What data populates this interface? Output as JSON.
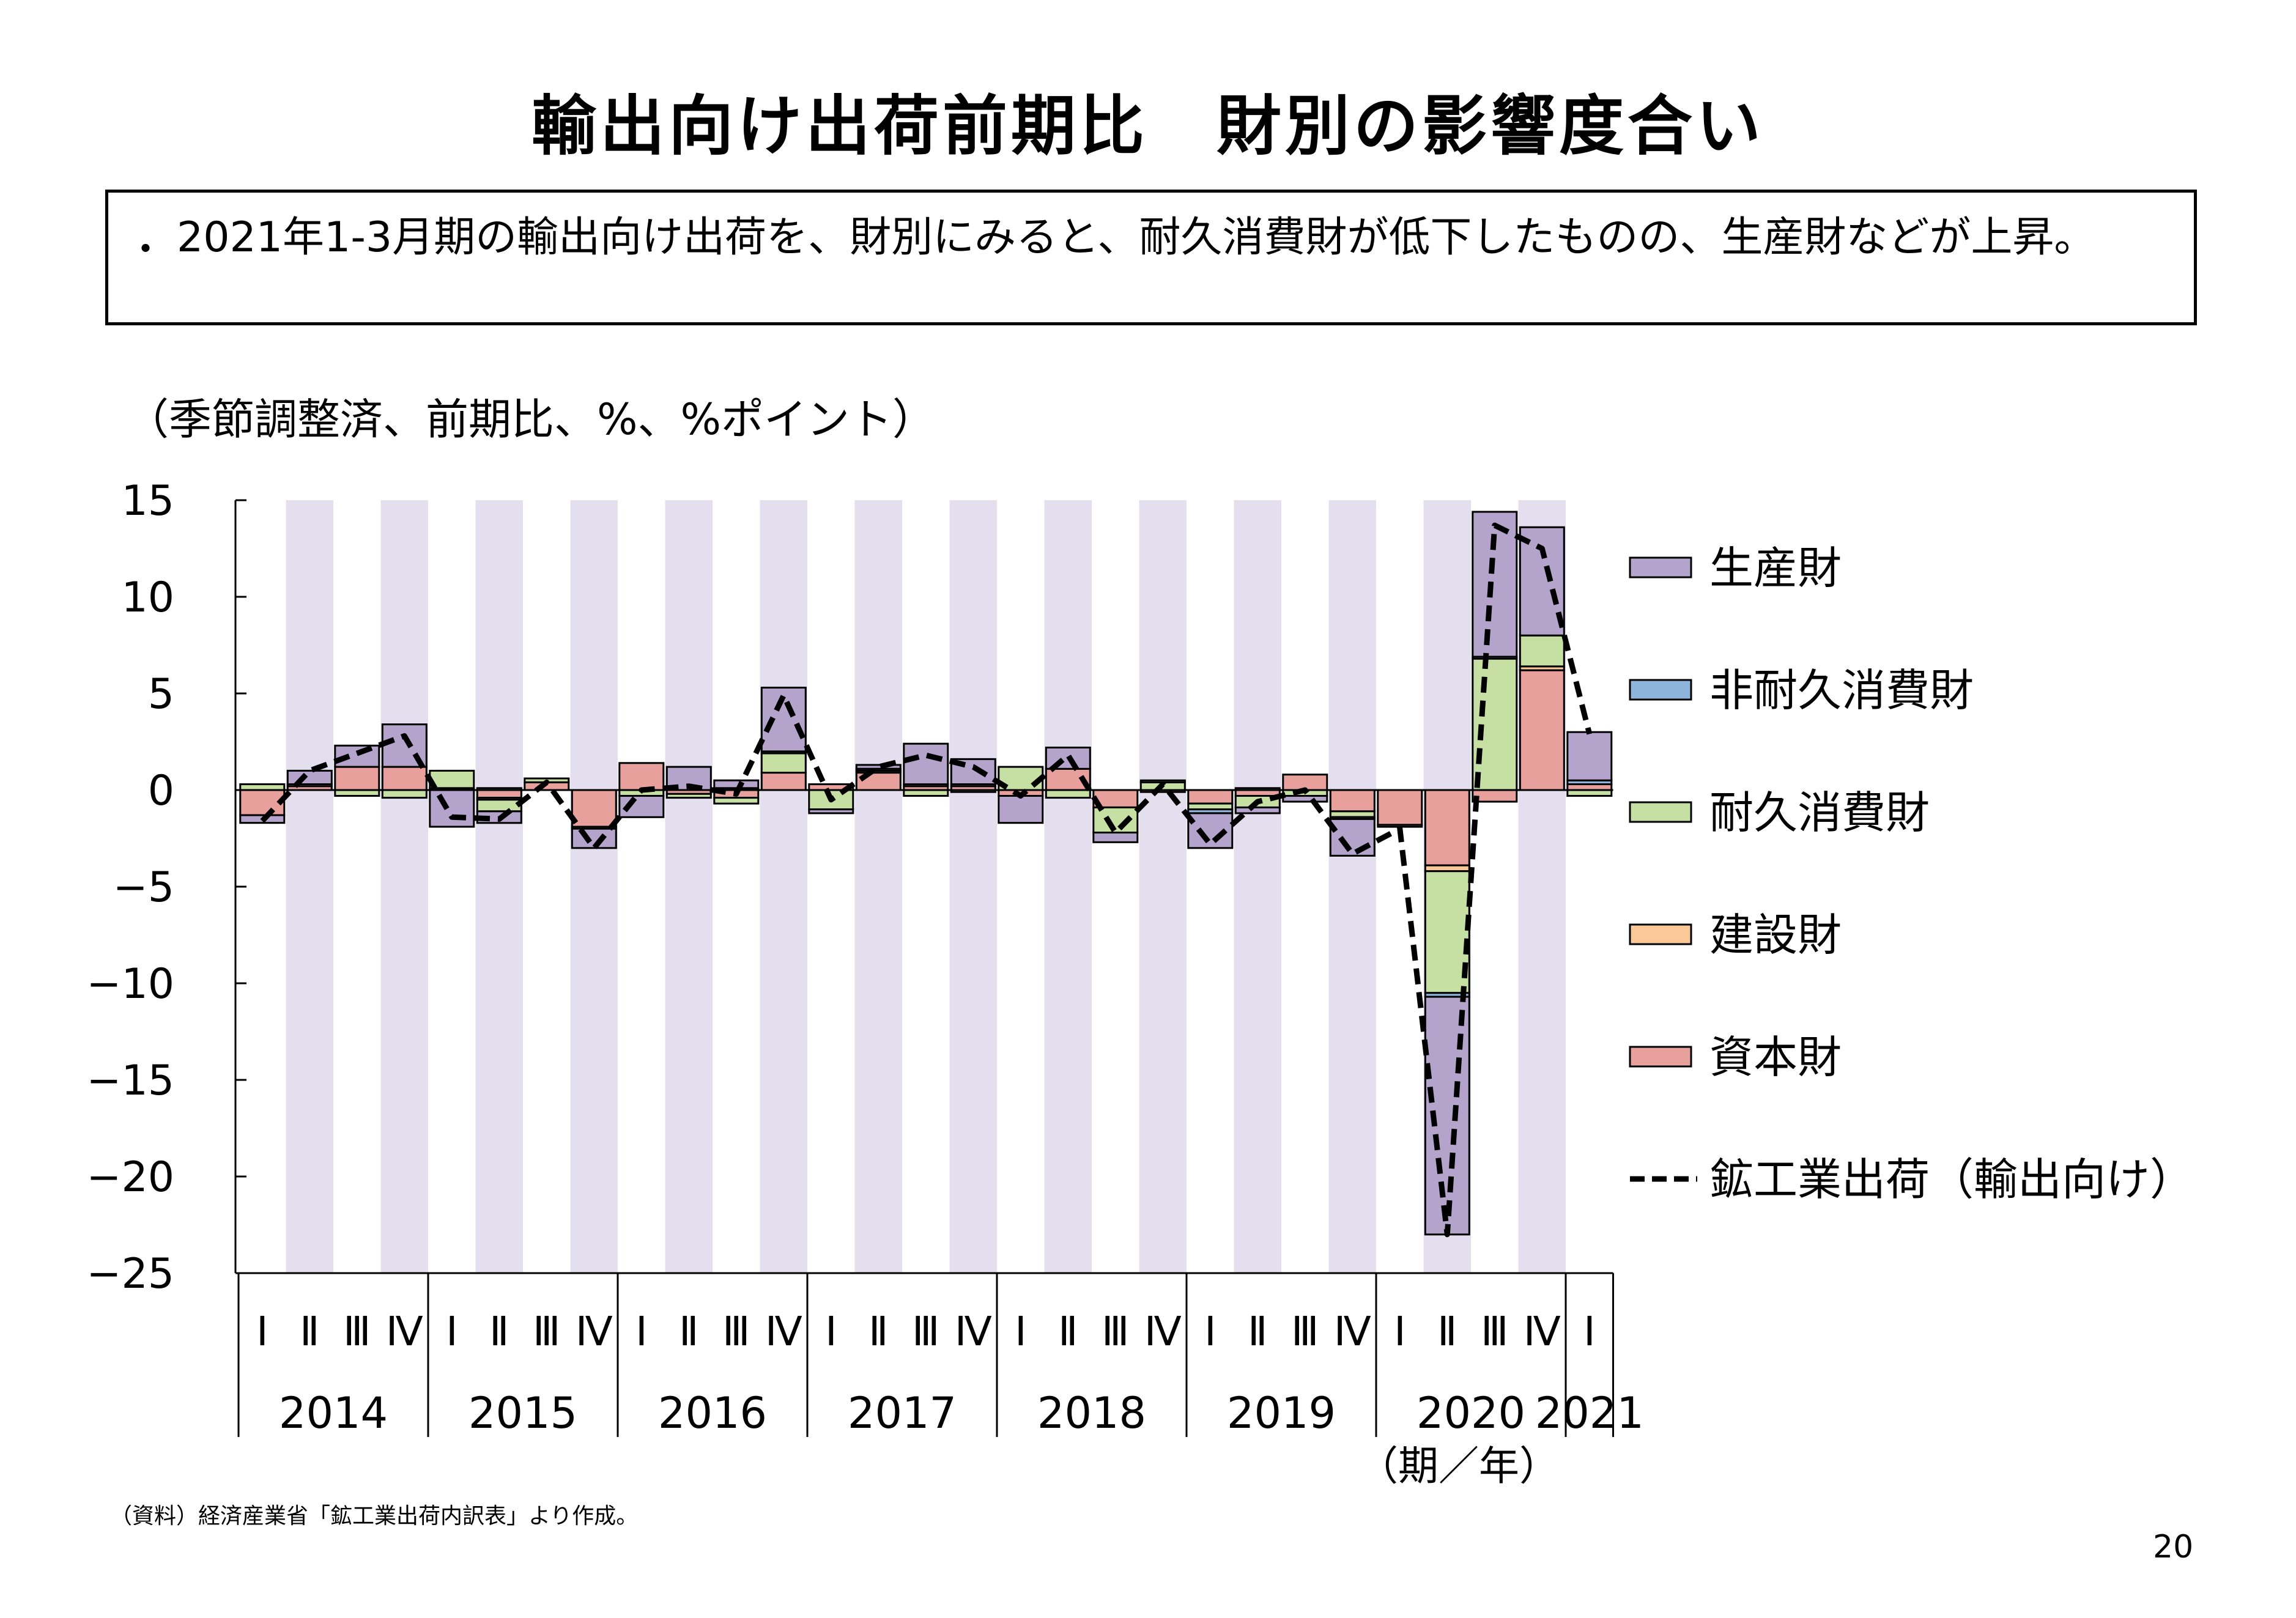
{
  "title": "輸出向け出荷前期比　財別の影響度合い",
  "summary": {
    "bullet": "・",
    "text": "2021年1-3月期の輸出向け出荷を、財別にみると、耐久消費財が低下したものの、生産財などが上昇。"
  },
  "unit_note": "（季節調整済、前期比、%、%ポイント）",
  "source_note": "（資料）経済産業省「鉱工業出荷内訳表」より作成。",
  "page_number": "20",
  "colors": {
    "producer": "#b4a4cc",
    "nondurable": "#8fb4dc",
    "durable": "#c6e0a4",
    "construction": "#fbc898",
    "capital": "#e8a09c",
    "shade": "#e4dfee",
    "line": "#000000"
  },
  "chart_data": {
    "type": "bar",
    "stacked": true,
    "ylim": [
      -25,
      15
    ],
    "yticks": [
      15,
      10,
      5,
      0,
      -5,
      -10,
      -15,
      -20,
      -25
    ],
    "ytick_labels": [
      "15",
      "10",
      "5",
      "0",
      "−5",
      "−10",
      "−15",
      "−20",
      "−25"
    ],
    "quarter_labels": [
      "Ⅰ",
      "Ⅱ",
      "Ⅲ",
      "Ⅳ",
      "Ⅰ",
      "Ⅱ",
      "Ⅲ",
      "Ⅳ",
      "Ⅰ",
      "Ⅱ",
      "Ⅲ",
      "Ⅳ",
      "Ⅰ",
      "Ⅱ",
      "Ⅲ",
      "Ⅳ",
      "Ⅰ",
      "Ⅱ",
      "Ⅲ",
      "Ⅳ",
      "Ⅰ",
      "Ⅱ",
      "Ⅲ",
      "Ⅳ",
      "Ⅰ",
      "Ⅱ",
      "Ⅲ",
      "Ⅳ",
      "Ⅰ"
    ],
    "years": [
      {
        "label": "2014",
        "quarters": 4
      },
      {
        "label": "2015",
        "quarters": 4
      },
      {
        "label": "2016",
        "quarters": 4
      },
      {
        "label": "2017",
        "quarters": 4
      },
      {
        "label": "2018",
        "quarters": 4
      },
      {
        "label": "2019",
        "quarters": 4
      },
      {
        "label": "2020",
        "quarters": 4
      },
      {
        "label": "2021",
        "quarters": 1
      }
    ],
    "x_axis_note": "（期／年）",
    "series": [
      {
        "key": "capital",
        "name": "資本財",
        "values": [
          -1.3,
          0.2,
          1.2,
          1.2,
          0.1,
          -0.4,
          0.4,
          -1.9,
          1.4,
          -0.2,
          -0.4,
          0.9,
          0.3,
          0.9,
          0.2,
          0.2,
          -0.3,
          1.1,
          -0.9,
          -0.1,
          -0.7,
          -0.3,
          0.8,
          -1.1,
          -1.8,
          -3.9,
          -0.6,
          6.2,
          0.3
        ]
      },
      {
        "key": "construction",
        "name": "建設財",
        "values": [
          0.0,
          0.0,
          0.0,
          0.0,
          0.0,
          -0.1,
          0.0,
          0.0,
          0.0,
          0.0,
          0.0,
          0.0,
          0.0,
          0.0,
          0.0,
          0.0,
          0.0,
          0.0,
          0.0,
          0.0,
          0.0,
          0.0,
          0.0,
          0.0,
          0.0,
          -0.3,
          0.0,
          0.2,
          0.0
        ]
      },
      {
        "key": "durable",
        "name": "耐久消費財",
        "values": [
          0.3,
          0.1,
          -0.3,
          -0.4,
          0.9,
          -0.6,
          0.2,
          -0.1,
          -0.3,
          -0.2,
          -0.3,
          1.0,
          -1.0,
          0.1,
          -0.3,
          -0.1,
          1.2,
          -0.4,
          -1.3,
          0.4,
          -0.3,
          -0.6,
          -0.3,
          -0.3,
          -0.1,
          -6.3,
          6.8,
          1.6,
          -0.3
        ]
      },
      {
        "key": "nondurable",
        "name": "非耐久消費財",
        "values": [
          0.0,
          0.0,
          0.0,
          0.0,
          0.0,
          0.1,
          0.0,
          0.0,
          0.0,
          0.0,
          0.1,
          0.1,
          0.0,
          0.1,
          0.1,
          0.1,
          0.0,
          0.0,
          0.0,
          0.0,
          -0.2,
          0.1,
          0.0,
          -0.1,
          0.0,
          -0.2,
          0.1,
          0.0,
          0.2
        ]
      },
      {
        "key": "producer",
        "name": "生産財",
        "values": [
          -0.4,
          0.7,
          1.1,
          2.2,
          -1.9,
          -0.6,
          0.0,
          -1.0,
          -1.1,
          1.2,
          0.4,
          3.3,
          -0.2,
          0.2,
          2.1,
          1.3,
          -1.4,
          1.1,
          -0.5,
          0.1,
          -1.8,
          -0.3,
          -0.3,
          -1.9,
          0.0,
          -12.3,
          7.5,
          5.6,
          2.5
        ]
      }
    ],
    "line": {
      "name": "鉱工業出荷（輸出向け）",
      "values": [
        -1.6,
        1.0,
        1.9,
        2.8,
        -1.4,
        -1.5,
        0.4,
        -3.0,
        0.0,
        0.2,
        -0.2,
        4.9,
        -0.5,
        1.2,
        1.8,
        1.2,
        -0.3,
        1.8,
        -2.2,
        0.3,
        -2.8,
        -0.6,
        0.0,
        -3.3,
        -2.0,
        -23.0,
        13.7,
        12.5,
        2.9
      ]
    },
    "legend": {
      "position": "right",
      "order": [
        "producer",
        "nondurable",
        "durable",
        "construction",
        "capital",
        "line"
      ]
    }
  }
}
